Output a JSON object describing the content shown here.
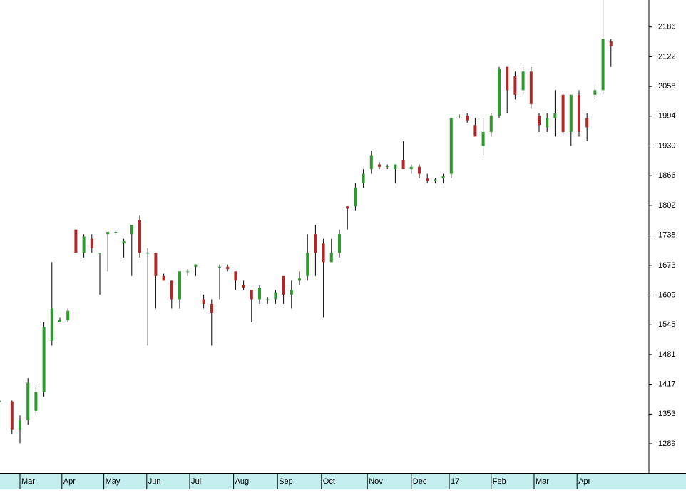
{
  "chart_data": {
    "type": "candlestick",
    "x": [
      0,
      6,
      10,
      14,
      18,
      22,
      26,
      30,
      34,
      38,
      42,
      46,
      50,
      54,
      58,
      62,
      66,
      70,
      74,
      78,
      82,
      86,
      90,
      94,
      98,
      102,
      106,
      110,
      114,
      118,
      122,
      126,
      130,
      134,
      138,
      142,
      146,
      150,
      154,
      158,
      162,
      166,
      170,
      174,
      178,
      182,
      186,
      190,
      194,
      198,
      202,
      206,
      210,
      214,
      218,
      222,
      226,
      230,
      234,
      238,
      242,
      246,
      250,
      254,
      258,
      262,
      266,
      270,
      274,
      278,
      282,
      286,
      290,
      294,
      298,
      302,
      306
    ],
    "open": [
      1380,
      1380,
      1320,
      1340,
      1360,
      1400,
      1510,
      1550,
      1555,
      1750,
      1700,
      1730,
      1700,
      1740,
      1745,
      1720,
      1740,
      1770,
      1700,
      1700,
      1650,
      1640,
      1600,
      1660,
      1670,
      1600,
      1590,
      1670,
      1670,
      1660,
      1630,
      1620,
      1600,
      1600,
      1600,
      1650,
      1610,
      1640,
      1650,
      1740,
      1720,
      1680,
      1700,
      1800,
      1800,
      1850,
      1880,
      1890,
      1885,
      1880,
      1900,
      1880,
      1885,
      1860,
      1855,
      1860,
      1870,
      1995,
      1995,
      1975,
      1930,
      1960,
      1995,
      2100,
      2080,
      2050,
      2090,
      1995,
      1970,
      1990,
      2040,
      1960,
      2040,
      1990,
      2040,
      2050,
      2155
    ],
    "high": [
      1382,
      1382,
      1350,
      1430,
      1410,
      1550,
      1680,
      1560,
      1580,
      1755,
      1740,
      1740,
      1700,
      1745,
      1750,
      1730,
      1750,
      1780,
      1710,
      1700,
      1655,
      1640,
      1660,
      1665,
      1675,
      1610,
      1600,
      1675,
      1675,
      1660,
      1640,
      1620,
      1630,
      1605,
      1620,
      1650,
      1640,
      1660,
      1740,
      1760,
      1730,
      1730,
      1750,
      1800,
      1850,
      1880,
      1920,
      1895,
      1890,
      1890,
      1940,
      1890,
      1890,
      1870,
      1860,
      1870,
      1990,
      1998,
      2000,
      1990,
      1990,
      2000,
      2100,
      2100,
      2090,
      2100,
      2100,
      2000,
      2000,
      2050,
      2045,
      2040,
      2050,
      2000,
      2060,
      2244,
      2160
    ],
    "low": [
      1378,
      1310,
      1290,
      1330,
      1350,
      1390,
      1500,
      1550,
      1550,
      1700,
      1690,
      1700,
      1610,
      1660,
      1740,
      1690,
      1650,
      1690,
      1500,
      1580,
      1640,
      1580,
      1580,
      1650,
      1650,
      1580,
      1500,
      1600,
      1660,
      1620,
      1620,
      1550,
      1590,
      1590,
      1590,
      1590,
      1580,
      1630,
      1640,
      1650,
      1560,
      1680,
      1690,
      1750,
      1790,
      1840,
      1870,
      1880,
      1880,
      1850,
      1880,
      1870,
      1860,
      1850,
      1850,
      1850,
      1860,
      1990,
      1980,
      1960,
      1910,
      1950,
      1990,
      2000,
      2030,
      2040,
      2010,
      1960,
      1960,
      1950,
      1950,
      1930,
      1950,
      1940,
      2030,
      2040,
      2100
    ],
    "close": [
      1380,
      1320,
      1340,
      1420,
      1400,
      1540,
      1580,
      1555,
      1575,
      1700,
      1735,
      1710,
      1700,
      1745,
      1745,
      1725,
      1760,
      1700,
      1700,
      1650,
      1640,
      1600,
      1660,
      1660,
      1675,
      1590,
      1570,
      1670,
      1665,
      1640,
      1625,
      1600,
      1625,
      1600,
      1615,
      1610,
      1620,
      1645,
      1700,
      1700,
      1680,
      1700,
      1740,
      1795,
      1840,
      1870,
      1910,
      1885,
      1887,
      1890,
      1880,
      1885,
      1870,
      1855,
      1858,
      1865,
      1990,
      1995,
      1985,
      1950,
      1960,
      1995,
      2095,
      2050,
      2040,
      2090,
      2020,
      1975,
      1990,
      2000,
      1960,
      2040,
      1960,
      1970,
      2050,
      2160,
      2145
    ],
    "up_color": "#2e9a2e",
    "down_color": "#b02828",
    "xlim": [
      0,
      325
    ],
    "xticks": [
      {
        "value": 10,
        "label": "Mar"
      },
      {
        "value": 31,
        "label": "Apr"
      },
      {
        "value": 52,
        "label": "May"
      },
      {
        "value": 73.5,
        "label": "Jun"
      },
      {
        "value": 95,
        "label": "Jul"
      },
      {
        "value": 117,
        "label": "Aug"
      },
      {
        "value": 139,
        "label": "Sep"
      },
      {
        "value": 161,
        "label": "Oct"
      },
      {
        "value": 184,
        "label": "Nov"
      },
      {
        "value": 206,
        "label": "Dec"
      },
      {
        "value": 225,
        "label": "17"
      },
      {
        "value": 246,
        "label": "Feb"
      },
      {
        "value": 267.5,
        "label": "Mar"
      },
      {
        "value": 289,
        "label": "Apr"
      }
    ],
    "ylim": [
      1226,
      2244
    ],
    "yticks": [
      1289,
      1353,
      1417,
      1481,
      1545,
      1609,
      1673,
      1738,
      1802,
      1866,
      1930,
      1994,
      2058,
      2122,
      2186
    ]
  }
}
